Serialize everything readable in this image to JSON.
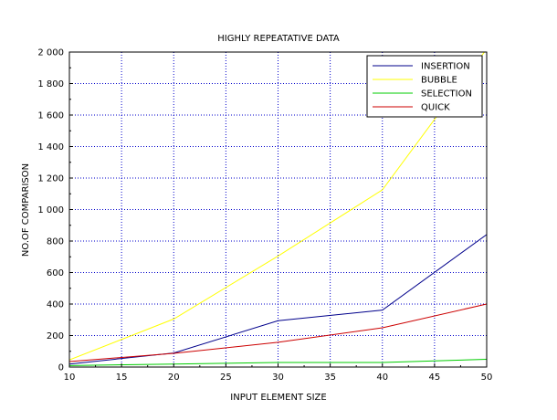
{
  "chart_data": {
    "type": "line",
    "title": "HIGHLY REPEATATIVE DATA",
    "xlabel": "INPUT ELEMENT SIZE",
    "ylabel": "NO.OF COMPARISON",
    "xlim": [
      10,
      50
    ],
    "ylim": [
      0,
      2000
    ],
    "x_ticks": [
      10,
      15,
      20,
      25,
      30,
      35,
      40,
      45,
      50
    ],
    "y_ticks": [
      0,
      200,
      400,
      600,
      800,
      1000,
      1200,
      1400,
      1600,
      1800,
      2000
    ],
    "x_tick_labels": [
      "10",
      "15",
      "20",
      "25",
      "30",
      "35",
      "40",
      "45",
      "50"
    ],
    "y_tick_labels": [
      "0",
      "200",
      "400",
      "600",
      "800",
      "1 000",
      "1 200",
      "1 400",
      "1 600",
      "1 800",
      "2 000"
    ],
    "grid": true,
    "grid_color": "#0000cc",
    "legend_position": "top-right",
    "x": [
      10,
      20,
      30,
      40,
      50
    ],
    "series": [
      {
        "name": "INSERTION",
        "color": "#00008b",
        "values": [
          19,
          89,
          294,
          362,
          841
        ]
      },
      {
        "name": "BUBBLE",
        "color": "#ffff00",
        "values": [
          45,
          305,
          705,
          1125,
          2020
        ]
      },
      {
        "name": "SELECTION",
        "color": "#00cc00",
        "values": [
          9,
          19,
          29,
          29,
          49
        ]
      },
      {
        "name": "QUICK",
        "color": "#cc0000",
        "values": [
          35,
          87,
          157,
          249,
          400
        ]
      }
    ]
  }
}
